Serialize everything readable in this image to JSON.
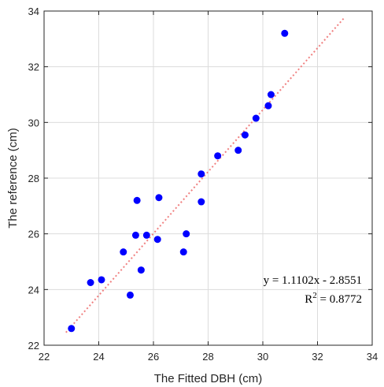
{
  "chart_data": {
    "type": "scatter",
    "xlabel": "The Fitted DBH (cm)",
    "ylabel": "The reference (cm)",
    "xlim": [
      22,
      34
    ],
    "ylim": [
      22,
      34
    ],
    "xticks": [
      "22",
      "24",
      "26",
      "28",
      "30",
      "32",
      "34"
    ],
    "yticks": [
      "22",
      "24",
      "26",
      "28",
      "30",
      "32",
      "34"
    ],
    "grid": true,
    "points": [
      {
        "x": 23.0,
        "y": 22.6
      },
      {
        "x": 23.7,
        "y": 24.25
      },
      {
        "x": 24.1,
        "y": 24.35
      },
      {
        "x": 24.9,
        "y": 25.35
      },
      {
        "x": 25.15,
        "y": 23.8
      },
      {
        "x": 25.35,
        "y": 25.95
      },
      {
        "x": 25.4,
        "y": 27.2
      },
      {
        "x": 25.55,
        "y": 24.7
      },
      {
        "x": 25.75,
        "y": 25.95
      },
      {
        "x": 26.15,
        "y": 25.8
      },
      {
        "x": 26.2,
        "y": 27.3
      },
      {
        "x": 27.1,
        "y": 25.35
      },
      {
        "x": 27.2,
        "y": 26.0
      },
      {
        "x": 27.75,
        "y": 28.15
      },
      {
        "x": 27.75,
        "y": 27.15
      },
      {
        "x": 28.35,
        "y": 28.8
      },
      {
        "x": 29.1,
        "y": 29.0
      },
      {
        "x": 29.35,
        "y": 29.55
      },
      {
        "x": 29.75,
        "y": 30.15
      },
      {
        "x": 30.2,
        "y": 30.6
      },
      {
        "x": 30.3,
        "y": 31.0
      },
      {
        "x": 30.8,
        "y": 33.2
      }
    ],
    "fit": {
      "slope": 1.1102,
      "intercept": -2.8551,
      "x_range": [
        22.8,
        33.0
      ]
    },
    "annotation": {
      "equation": "y = 1.1102x - 2.8551",
      "r2_prefix": "R",
      "r2_exp": "2",
      "r2_value": " = 0.8772"
    },
    "colors": {
      "points": "#0000ff",
      "fit": "#f08080",
      "grid": "#dcdcdc",
      "axis": "#262626"
    }
  }
}
